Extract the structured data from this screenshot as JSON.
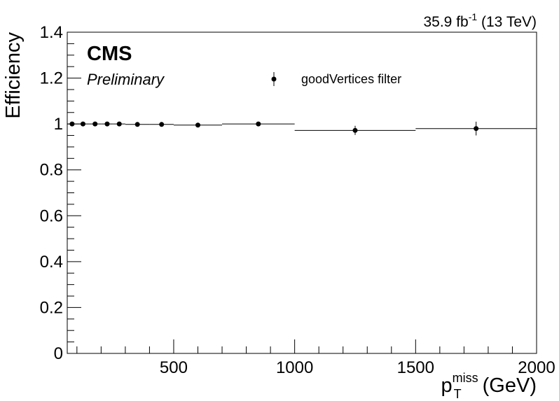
{
  "chart_data": {
    "type": "scatter",
    "experiment": "CMS",
    "status": "Preliminary",
    "lumi_label": "35.9 fb",
    "lumi_sup": "-1",
    "energy_label": " (13 TeV)",
    "ylabel": "Efficiency",
    "xlabel_main": "p",
    "xlabel_sub": "T",
    "xlabel_sup": "miss",
    "xlabel_unit": " (GeV)",
    "xlim": [
      60,
      2000
    ],
    "ylim": [
      0,
      1.4
    ],
    "xticks": [
      "500",
      "1000",
      "1500",
      "2000"
    ],
    "yticks": [
      "0",
      "0.2",
      "0.4",
      "0.6",
      "0.8",
      "1",
      "1.2",
      "1.4"
    ],
    "grid": false,
    "legend_position": "top-right",
    "series": [
      {
        "name": "goodVertices filter",
        "color": "#000000",
        "points": [
          {
            "x": 80,
            "xlo": 60,
            "xhi": 100,
            "y": 1.0,
            "err": 0.003
          },
          {
            "x": 125,
            "xlo": 100,
            "xhi": 150,
            "y": 1.0,
            "err": 0.003
          },
          {
            "x": 175,
            "xlo": 150,
            "xhi": 200,
            "y": 1.0,
            "err": 0.003
          },
          {
            "x": 225,
            "xlo": 200,
            "xhi": 250,
            "y": 1.0,
            "err": 0.003
          },
          {
            "x": 275,
            "xlo": 250,
            "xhi": 300,
            "y": 1.0,
            "err": 0.003
          },
          {
            "x": 350,
            "xlo": 300,
            "xhi": 400,
            "y": 0.998,
            "err": 0.003
          },
          {
            "x": 450,
            "xlo": 400,
            "xhi": 500,
            "y": 0.998,
            "err": 0.004
          },
          {
            "x": 600,
            "xlo": 500,
            "xhi": 700,
            "y": 0.995,
            "err": 0.005
          },
          {
            "x": 850,
            "xlo": 700,
            "xhi": 1000,
            "y": 1.0,
            "err": 0.004
          },
          {
            "x": 1250,
            "xlo": 1000,
            "xhi": 1500,
            "y": 0.972,
            "err": 0.02
          },
          {
            "x": 1750,
            "xlo": 1500,
            "xhi": 2000,
            "y": 0.98,
            "err": 0.03
          }
        ]
      }
    ]
  }
}
